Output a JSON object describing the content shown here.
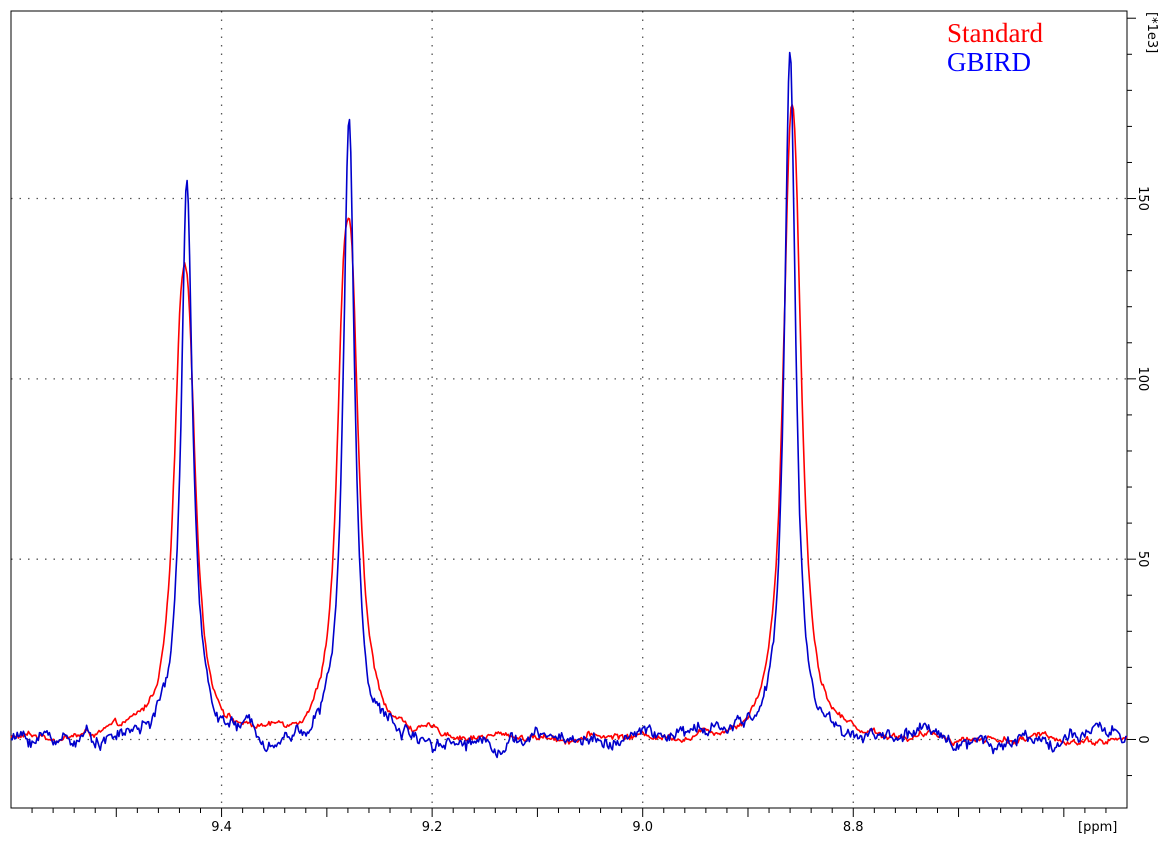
{
  "chart_data": {
    "type": "line",
    "xlabel": "[ppm]",
    "ylabel": "[*1e3]",
    "xlim": [
      9.6,
      8.54
    ],
    "ylim": [
      -19,
      202
    ],
    "x_ticks": [
      9.4,
      9.2,
      9.0,
      8.8
    ],
    "x_tick_labels": [
      "9.4",
      "9.2",
      "9.0",
      "8.8"
    ],
    "y_ticks": [
      0,
      50,
      100,
      150
    ],
    "y_tick_labels": [
      "0",
      "50",
      "100",
      "150"
    ],
    "grid": true,
    "legend": "top-right",
    "series": [
      {
        "name": "Standard",
        "color": "#ff0000",
        "peaks": [
          {
            "center": 9.435,
            "height": 151,
            "width": 0.0085,
            "split": 0.008
          },
          {
            "center": 9.28,
            "height": 168,
            "width": 0.0085,
            "split": 0.008
          },
          {
            "center": 8.858,
            "height": 191,
            "width": 0.0085,
            "split": 0.006
          }
        ],
        "noise": 1.6
      },
      {
        "name": "GBIRD",
        "color": "#0000cc",
        "peaks": [
          {
            "center": 9.433,
            "height": 155,
            "width": 0.0065,
            "split": 0
          },
          {
            "center": 9.279,
            "height": 171,
            "width": 0.0065,
            "split": 0
          },
          {
            "center": 8.86,
            "height": 191,
            "width": 0.0065,
            "split": 0
          }
        ],
        "noise": 3.2
      }
    ]
  }
}
